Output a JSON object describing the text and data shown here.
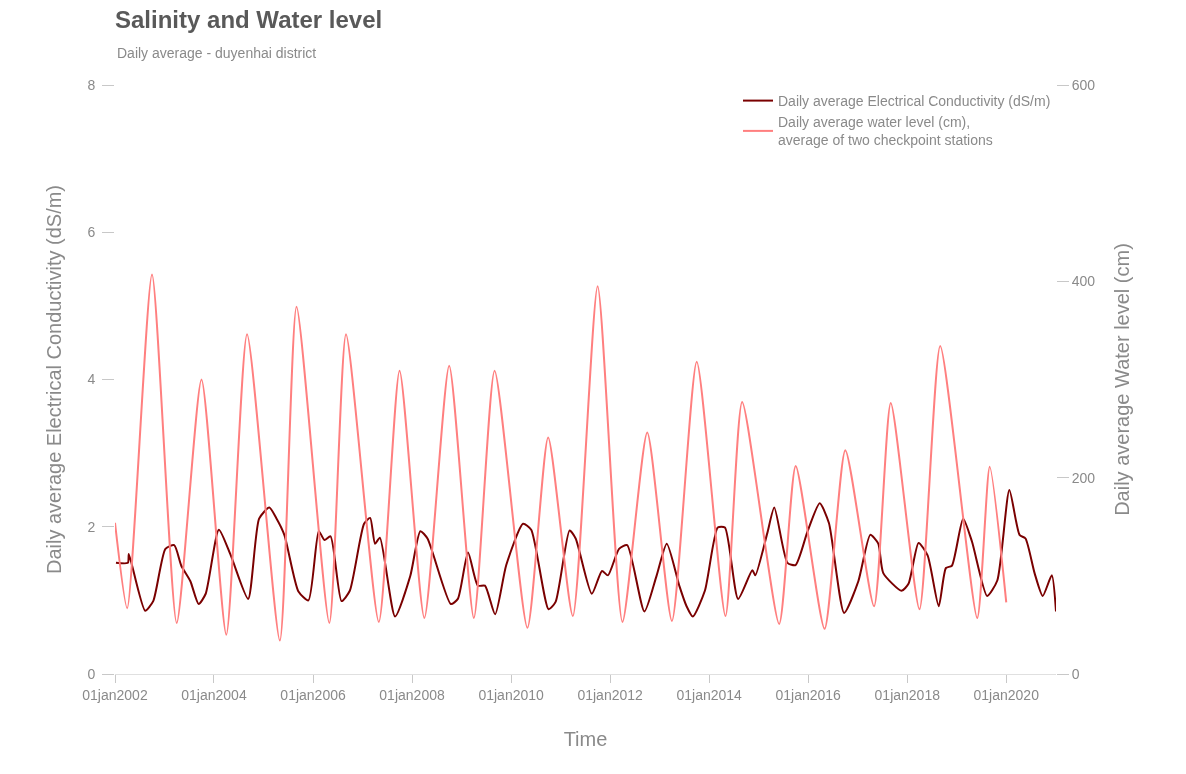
{
  "chart_data": {
    "type": "line",
    "title": "Salinity and Water level",
    "subtitle": "Daily average - duyenhai district",
    "xlabel": "Time",
    "ylabel": "Daily average Electrical Conductivity (dS/m)",
    "y2label": "Daily average Water level (cm)",
    "xticks": [
      {
        "value": "2002-01-01",
        "label": "01jan2002"
      },
      {
        "value": "2004-01-01",
        "label": "01jan2004"
      },
      {
        "value": "2006-01-01",
        "label": "01jan2006"
      },
      {
        "value": "2008-01-01",
        "label": "01jan2008"
      },
      {
        "value": "2010-01-01",
        "label": "01jan2010"
      },
      {
        "value": "2012-01-01",
        "label": "01jan2012"
      },
      {
        "value": "2014-01-01",
        "label": "01jan2014"
      },
      {
        "value": "2016-01-01",
        "label": "01jan2016"
      },
      {
        "value": "2018-01-01",
        "label": "01jan2018"
      },
      {
        "value": "2020-01-01",
        "label": "01jan2020"
      }
    ],
    "xlim": [
      "2002-01-01",
      "2021-01-02"
    ],
    "ylim": [
      0,
      8
    ],
    "yticks": [
      0,
      2,
      4,
      6,
      8
    ],
    "y2lim": [
      0,
      600
    ],
    "y2ticks": [
      0,
      200,
      400,
      600
    ],
    "legend": "top right",
    "marker": "none",
    "line_style": "solid",
    "series": [
      {
        "name": "Daily average Electrical Conductivity (dS/m)",
        "color": "#7a0000",
        "x": [
          "2002-01-08",
          "2002-04-06",
          "2002-04-13",
          "2002-08-11",
          "2002-10-10",
          "2003-01-08",
          "2003-03-14",
          "2003-05-05",
          "2003-07-11",
          "2003-09-10",
          "2003-11-01",
          "2004-02-06",
          "2004-05-04",
          "2004-09-09",
          "2004-11-29",
          "2005-02-12",
          "2005-04-04",
          "2005-06-03",
          "2005-09-15",
          "2005-11-28",
          "2006-02-12",
          "2006-03-26",
          "2006-05-10",
          "2006-07-30",
          "2006-09-29",
          "2007-01-12",
          "2007-02-26",
          "2007-04-03",
          "2007-05-09",
          "2007-08-29",
          "2007-12-19",
          "2008-03-02",
          "2008-04-24",
          "2008-10-13",
          "2008-12-04",
          "2009-02-17",
          "2009-04-30",
          "2009-06-22",
          "2009-09-05",
          "2009-11-26",
          "2010-03-30",
          "2010-05-29",
          "2010-10-04",
          "2010-11-25",
          "2011-03-08",
          "2011-04-22",
          "2011-08-19",
          "2011-11-02",
          "2011-12-16",
          "2012-03-07",
          "2012-05-06",
          "2012-09-10",
          "2012-12-08",
          "2013-02-22",
          "2013-05-27",
          "2013-07-18",
          "2013-09-02",
          "2013-11-30",
          "2014-03-05",
          "2014-04-27",
          "2014-08-02",
          "2014-11-15",
          "2014-12-07",
          "2015-03-05",
          "2015-04-26",
          "2015-08-01",
          "2015-09-30",
          "2015-12-28",
          "2016-03-26",
          "2016-06-02",
          "2016-09-22",
          "2017-01-05",
          "2017-04-03",
          "2017-06-01",
          "2017-07-08",
          "2017-11-20",
          "2018-01-11",
          "2018-03-25",
          "2018-05-31",
          "2018-08-21",
          "2018-10-13",
          "2018-11-26",
          "2019-02-17",
          "2019-04-23",
          "2019-08-13",
          "2019-10-27",
          "2020-01-24",
          "2020-04-08",
          "2020-05-22",
          "2020-07-28",
          "2020-09-26",
          "2020-12-02",
          "2021-01-02"
        ],
        "values": [
          1.51,
          1.51,
          1.63,
          0.86,
          0.99,
          1.7,
          1.75,
          1.47,
          1.26,
          0.95,
          1.09,
          1.96,
          1.61,
          1.02,
          2.11,
          2.26,
          2.12,
          1.89,
          1.12,
          1.0,
          1.94,
          1.82,
          1.87,
          0.99,
          1.13,
          2.04,
          2.12,
          1.77,
          1.85,
          0.78,
          1.33,
          1.94,
          1.84,
          0.95,
          1.02,
          1.65,
          1.2,
          1.2,
          0.81,
          1.48,
          2.04,
          1.96,
          0.88,
          0.98,
          1.95,
          1.84,
          1.09,
          1.4,
          1.34,
          1.7,
          1.75,
          0.85,
          1.33,
          1.77,
          1.19,
          0.92,
          0.78,
          1.13,
          1.99,
          1.99,
          1.02,
          1.41,
          1.34,
          1.91,
          2.26,
          1.51,
          1.48,
          1.94,
          2.32,
          2.05,
          0.83,
          1.26,
          1.89,
          1.77,
          1.37,
          1.13,
          1.23,
          1.78,
          1.61,
          0.92,
          1.44,
          1.47,
          2.11,
          1.8,
          1.06,
          1.27,
          2.5,
          1.89,
          1.84,
          1.37,
          1.06,
          1.34,
          0.85
        ]
      },
      {
        "name": "Daily average water level (cm),\naverage of two checkpoint stations",
        "color": "#ff7f7f",
        "axis": "y2",
        "x": [
          "2002-01-01",
          "2002-04-01",
          "2002-10-01",
          "2003-04-01",
          "2003-10-01",
          "2004-04-01",
          "2004-09-01",
          "2005-05-01",
          "2005-09-01",
          "2006-05-01",
          "2006-09-01",
          "2007-05-01",
          "2007-10-01",
          "2008-04-01",
          "2008-10-01",
          "2009-04-01",
          "2009-09-01",
          "2010-05-01",
          "2010-10-01",
          "2011-04-01",
          "2011-10-01",
          "2012-04-01",
          "2012-10-01",
          "2013-04-01",
          "2013-10-01",
          "2014-05-01",
          "2014-09-01",
          "2015-06-01",
          "2015-10-01",
          "2016-05-01",
          "2016-10-01",
          "2017-05-01",
          "2017-09-01",
          "2018-04-01",
          "2018-09-01",
          "2019-06-01",
          "2019-09-01",
          "2020-01-01"
        ],
        "values": [
          154,
          67,
          407,
          52,
          300,
          40,
          346,
          34,
          374,
          52,
          346,
          53,
          309,
          57,
          314,
          57,
          309,
          47,
          241,
          59,
          395,
          53,
          246,
          54,
          318,
          59,
          277,
          51,
          212,
          46,
          228,
          69,
          276,
          66,
          334,
          57,
          211,
          73
        ]
      }
    ]
  }
}
